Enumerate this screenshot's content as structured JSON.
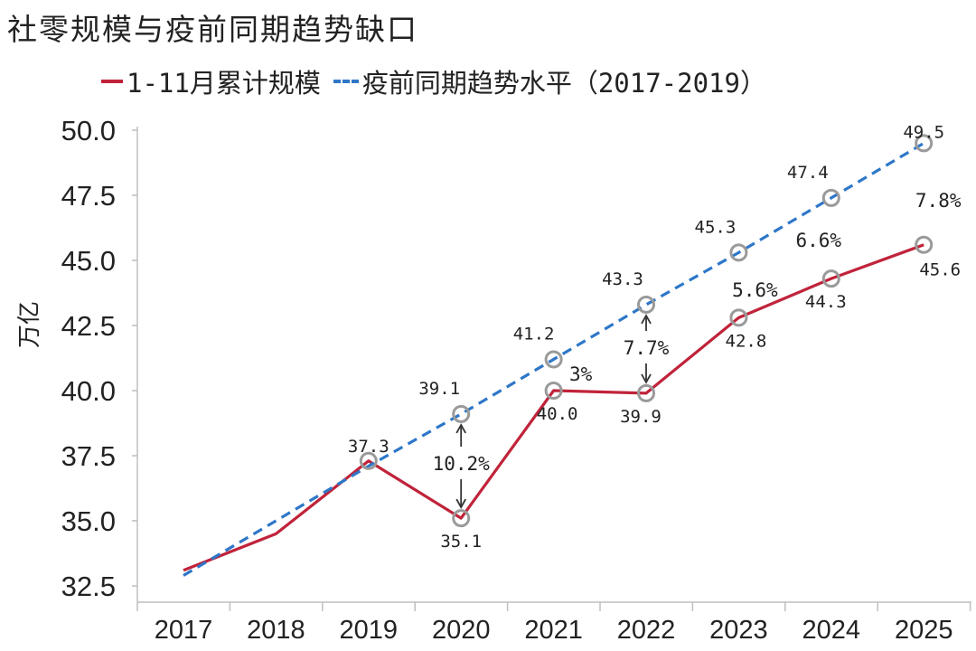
{
  "chart_data": {
    "type": "line",
    "title": "社零规模与疫前同期趋势缺口",
    "ylabel": "万亿",
    "xlabel": "",
    "categories": [
      "2017",
      "2018",
      "2019",
      "2020",
      "2021",
      "2022",
      "2023",
      "2024",
      "2025"
    ],
    "ylim": [
      32.5,
      50.0
    ],
    "yticks": [
      "32.5",
      "35.0",
      "37.5",
      "40.0",
      "42.5",
      "45.0",
      "47.5",
      "50.0"
    ],
    "legend_position": "top",
    "grid": false,
    "series": [
      {
        "name": "1-11月累计规模",
        "style": "solid",
        "color": "#c0233a",
        "values": [
          33.1,
          34.5,
          37.3,
          35.1,
          40.0,
          39.9,
          42.8,
          44.3,
          45.6
        ],
        "labels": [
          null,
          null,
          "37.3",
          "35.1",
          "40.0",
          "39.9",
          "42.8",
          "44.3",
          "45.6"
        ]
      },
      {
        "name": "疫前同期趋势水平（2017-2019）",
        "style": "dashed",
        "color": "#2e77c8",
        "values": [
          32.9,
          35.0,
          37.1,
          39.1,
          41.2,
          43.3,
          45.3,
          47.4,
          49.5
        ],
        "labels": [
          null,
          null,
          null,
          "39.1",
          "41.2",
          "43.3",
          "45.3",
          "47.4",
          "49.5"
        ]
      }
    ],
    "gap_labels": [
      {
        "category": "2020",
        "text": "10.2%",
        "arrows": true
      },
      {
        "category": "2021",
        "text": "3%",
        "arrows": false
      },
      {
        "category": "2022",
        "text": "7.7%",
        "arrows": true
      },
      {
        "category": "2023",
        "text": "5.6%",
        "arrows": false
      },
      {
        "category": "2024",
        "text": "6.6%",
        "arrows": false
      },
      {
        "category": "2025",
        "text": "7.8%",
        "arrows": false
      }
    ],
    "marker_color": "#9a9a9a"
  }
}
